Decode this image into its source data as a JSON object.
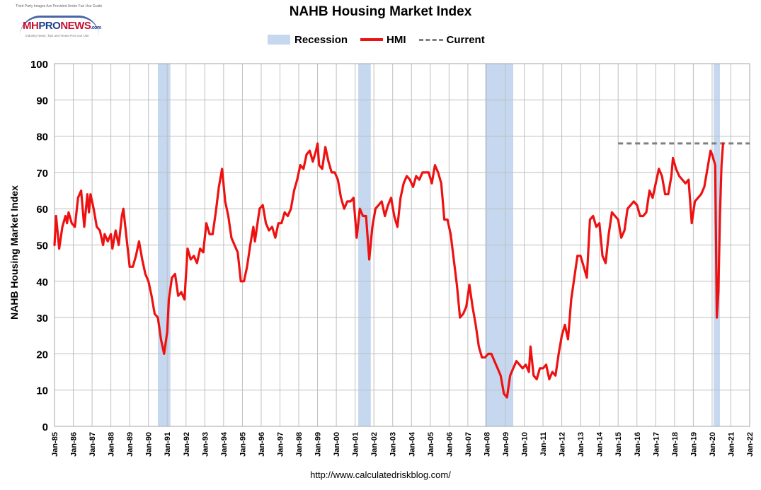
{
  "logo": {
    "fine_print": "Third Party Images Are Provided Under Fair Use Guidelines.",
    "mh": "MH",
    "pro": "PRO",
    "news": "NEWS",
    "com": ".com",
    "tagline": "Industry News, Tips and Views Pros can Use"
  },
  "source_url": "http://www.calculatedriskblog.com/",
  "colors": {
    "recession": "#c5d8ef",
    "hmi": "#ee1111",
    "current": "#808080",
    "grid": "#bfbfbf"
  },
  "chart_data": {
    "type": "line",
    "title": "NAHB Housing Market Index",
    "ylabel": "NAHB Housing Market Index",
    "xlabel": "",
    "ylim": [
      0,
      100
    ],
    "yticks": [
      0,
      10,
      20,
      30,
      40,
      50,
      60,
      70,
      80,
      90,
      100
    ],
    "xlim": [
      "1985-01",
      "2022-01"
    ],
    "xticks": [
      "Jan-85",
      "Jan-86",
      "Jan-87",
      "Jan-88",
      "Jan-89",
      "Jan-90",
      "Jan-91",
      "Jan-92",
      "Jan-93",
      "Jan-94",
      "Jan-95",
      "Jan-96",
      "Jan-97",
      "Jan-98",
      "Jan-99",
      "Jan-00",
      "Jan-01",
      "Jan-02",
      "Jan-03",
      "Jan-04",
      "Jan-05",
      "Jan-06",
      "Jan-07",
      "Jan-08",
      "Jan-09",
      "Jan-10",
      "Jan-11",
      "Jan-12",
      "Jan-13",
      "Jan-14",
      "Jan-15",
      "Jan-16",
      "Jan-17",
      "Jan-18",
      "Jan-19",
      "Jan-20",
      "Jan-21",
      "Jan-22"
    ],
    "grid": true,
    "legend_position": "top",
    "legend": [
      "Recession",
      "HMI",
      "Current"
    ],
    "recessions": [
      [
        "1990-07",
        "1991-03"
      ],
      [
        "2001-03",
        "2001-11"
      ],
      [
        "2007-12",
        "2009-06"
      ],
      [
        "2020-02",
        "2020-06"
      ]
    ],
    "series": [
      {
        "name": "HMI",
        "points": [
          [
            "1985-01",
            50
          ],
          [
            "1985-02",
            58
          ],
          [
            "1985-04",
            49
          ],
          [
            "1985-06",
            55
          ],
          [
            "1985-08",
            58
          ],
          [
            "1985-09",
            56
          ],
          [
            "1985-10",
            59
          ],
          [
            "1985-12",
            56
          ],
          [
            "1986-02",
            55
          ],
          [
            "1986-04",
            63
          ],
          [
            "1986-06",
            65
          ],
          [
            "1986-08",
            55
          ],
          [
            "1986-10",
            64
          ],
          [
            "1986-11",
            59
          ],
          [
            "1986-12",
            64
          ],
          [
            "1987-02",
            60
          ],
          [
            "1987-04",
            55
          ],
          [
            "1987-06",
            54
          ],
          [
            "1987-08",
            50
          ],
          [
            "1987-09",
            53
          ],
          [
            "1987-11",
            51
          ],
          [
            "1988-01",
            53
          ],
          [
            "1988-02",
            49
          ],
          [
            "1988-04",
            54
          ],
          [
            "1988-06",
            50
          ],
          [
            "1988-08",
            58
          ],
          [
            "1988-09",
            60
          ],
          [
            "1988-11",
            52
          ],
          [
            "1989-01",
            44
          ],
          [
            "1989-03",
            44
          ],
          [
            "1989-05",
            47
          ],
          [
            "1989-07",
            51
          ],
          [
            "1989-09",
            46
          ],
          [
            "1989-11",
            42
          ],
          [
            "1990-01",
            40
          ],
          [
            "1990-03",
            36
          ],
          [
            "1990-05",
            31
          ],
          [
            "1990-07",
            30
          ],
          [
            "1990-09",
            24
          ],
          [
            "1990-11",
            20
          ],
          [
            "1991-01",
            26
          ],
          [
            "1991-02",
            35
          ],
          [
            "1991-04",
            41
          ],
          [
            "1991-06",
            42
          ],
          [
            "1991-08",
            36
          ],
          [
            "1991-10",
            37
          ],
          [
            "1991-12",
            35
          ],
          [
            "1992-02",
            49
          ],
          [
            "1992-04",
            46
          ],
          [
            "1992-06",
            47
          ],
          [
            "1992-08",
            45
          ],
          [
            "1992-10",
            49
          ],
          [
            "1992-12",
            48
          ],
          [
            "1993-02",
            56
          ],
          [
            "1993-04",
            53
          ],
          [
            "1993-06",
            53
          ],
          [
            "1993-08",
            59
          ],
          [
            "1993-10",
            66
          ],
          [
            "1993-12",
            71
          ],
          [
            "1994-02",
            62
          ],
          [
            "1994-04",
            58
          ],
          [
            "1994-06",
            52
          ],
          [
            "1994-08",
            50
          ],
          [
            "1994-10",
            48
          ],
          [
            "1994-12",
            40
          ],
          [
            "1995-02",
            40
          ],
          [
            "1995-04",
            44
          ],
          [
            "1995-06",
            50
          ],
          [
            "1995-08",
            55
          ],
          [
            "1995-09",
            51
          ],
          [
            "1995-10",
            54
          ],
          [
            "1995-12",
            60
          ],
          [
            "1996-02",
            61
          ],
          [
            "1996-04",
            56
          ],
          [
            "1996-06",
            54
          ],
          [
            "1996-08",
            55
          ],
          [
            "1996-10",
            52
          ],
          [
            "1996-12",
            56
          ],
          [
            "1997-02",
            56
          ],
          [
            "1997-04",
            59
          ],
          [
            "1997-06",
            58
          ],
          [
            "1997-08",
            60
          ],
          [
            "1997-10",
            65
          ],
          [
            "1997-12",
            68
          ],
          [
            "1998-02",
            72
          ],
          [
            "1998-04",
            71
          ],
          [
            "1998-06",
            75
          ],
          [
            "1998-08",
            76
          ],
          [
            "1998-10",
            73
          ],
          [
            "1998-12",
            76
          ],
          [
            "1999-01",
            78
          ],
          [
            "1999-02",
            72
          ],
          [
            "1999-04",
            71
          ],
          [
            "1999-06",
            77
          ],
          [
            "1999-08",
            73
          ],
          [
            "1999-10",
            70
          ],
          [
            "1999-12",
            70
          ],
          [
            "2000-02",
            68
          ],
          [
            "2000-04",
            63
          ],
          [
            "2000-06",
            60
          ],
          [
            "2000-08",
            62
          ],
          [
            "2000-10",
            62
          ],
          [
            "2000-12",
            63
          ],
          [
            "2001-02",
            52
          ],
          [
            "2001-04",
            60
          ],
          [
            "2001-06",
            58
          ],
          [
            "2001-08",
            58
          ],
          [
            "2001-10",
            46
          ],
          [
            "2001-12",
            55
          ],
          [
            "2002-02",
            60
          ],
          [
            "2002-04",
            61
          ],
          [
            "2002-06",
            62
          ],
          [
            "2002-08",
            58
          ],
          [
            "2002-10",
            61
          ],
          [
            "2002-12",
            63
          ],
          [
            "2003-02",
            58
          ],
          [
            "2003-04",
            55
          ],
          [
            "2003-06",
            63
          ],
          [
            "2003-08",
            67
          ],
          [
            "2003-10",
            69
          ],
          [
            "2003-12",
            68
          ],
          [
            "2004-02",
            66
          ],
          [
            "2004-04",
            69
          ],
          [
            "2004-06",
            68
          ],
          [
            "2004-08",
            70
          ],
          [
            "2004-10",
            70
          ],
          [
            "2004-12",
            70
          ],
          [
            "2005-02",
            67
          ],
          [
            "2005-04",
            72
          ],
          [
            "2005-06",
            70
          ],
          [
            "2005-08",
            67
          ],
          [
            "2005-10",
            57
          ],
          [
            "2005-12",
            57
          ],
          [
            "2006-02",
            53
          ],
          [
            "2006-04",
            46
          ],
          [
            "2006-06",
            39
          ],
          [
            "2006-08",
            30
          ],
          [
            "2006-10",
            31
          ],
          [
            "2006-12",
            33
          ],
          [
            "2007-02",
            39
          ],
          [
            "2007-04",
            33
          ],
          [
            "2007-06",
            28
          ],
          [
            "2007-08",
            22
          ],
          [
            "2007-10",
            19
          ],
          [
            "2007-12",
            19
          ],
          [
            "2008-02",
            20
          ],
          [
            "2008-04",
            20
          ],
          [
            "2008-06",
            18
          ],
          [
            "2008-08",
            16
          ],
          [
            "2008-10",
            14
          ],
          [
            "2008-12",
            9
          ],
          [
            "2009-02",
            8
          ],
          [
            "2009-04",
            14
          ],
          [
            "2009-06",
            16
          ],
          [
            "2009-08",
            18
          ],
          [
            "2009-10",
            17
          ],
          [
            "2009-12",
            16
          ],
          [
            "2010-02",
            17
          ],
          [
            "2010-04",
            15
          ],
          [
            "2010-05",
            22
          ],
          [
            "2010-07",
            14
          ],
          [
            "2010-09",
            13
          ],
          [
            "2010-11",
            16
          ],
          [
            "2011-01",
            16
          ],
          [
            "2011-03",
            17
          ],
          [
            "2011-05",
            13
          ],
          [
            "2011-07",
            15
          ],
          [
            "2011-09",
            14
          ],
          [
            "2011-11",
            20
          ],
          [
            "2012-01",
            25
          ],
          [
            "2012-03",
            28
          ],
          [
            "2012-05",
            24
          ],
          [
            "2012-07",
            35
          ],
          [
            "2012-09",
            41
          ],
          [
            "2012-11",
            47
          ],
          [
            "2013-01",
            47
          ],
          [
            "2013-03",
            44
          ],
          [
            "2013-05",
            41
          ],
          [
            "2013-07",
            57
          ],
          [
            "2013-09",
            58
          ],
          [
            "2013-11",
            55
          ],
          [
            "2014-01",
            56
          ],
          [
            "2014-03",
            47
          ],
          [
            "2014-05",
            45
          ],
          [
            "2014-07",
            53
          ],
          [
            "2014-09",
            59
          ],
          [
            "2014-11",
            58
          ],
          [
            "2015-01",
            57
          ],
          [
            "2015-03",
            52
          ],
          [
            "2015-05",
            54
          ],
          [
            "2015-07",
            60
          ],
          [
            "2015-09",
            61
          ],
          [
            "2015-11",
            62
          ],
          [
            "2016-01",
            61
          ],
          [
            "2016-03",
            58
          ],
          [
            "2016-05",
            58
          ],
          [
            "2016-07",
            59
          ],
          [
            "2016-09",
            65
          ],
          [
            "2016-11",
            63
          ],
          [
            "2017-01",
            67
          ],
          [
            "2017-03",
            71
          ],
          [
            "2017-05",
            69
          ],
          [
            "2017-07",
            64
          ],
          [
            "2017-09",
            64
          ],
          [
            "2017-11",
            69
          ],
          [
            "2017-12",
            74
          ],
          [
            "2018-02",
            71
          ],
          [
            "2018-04",
            69
          ],
          [
            "2018-06",
            68
          ],
          [
            "2018-08",
            67
          ],
          [
            "2018-10",
            68
          ],
          [
            "2018-12",
            56
          ],
          [
            "2019-02",
            62
          ],
          [
            "2019-04",
            63
          ],
          [
            "2019-06",
            64
          ],
          [
            "2019-08",
            66
          ],
          [
            "2019-10",
            71
          ],
          [
            "2019-12",
            76
          ],
          [
            "2020-01",
            75
          ],
          [
            "2020-03",
            72
          ],
          [
            "2020-04",
            30
          ],
          [
            "2020-05",
            37
          ],
          [
            "2020-06",
            58
          ],
          [
            "2020-07",
            72
          ],
          [
            "2020-08",
            78
          ]
        ]
      },
      {
        "name": "Current",
        "points": [
          [
            "2015-01",
            78
          ],
          [
            "2022-01",
            78
          ]
        ]
      }
    ]
  }
}
